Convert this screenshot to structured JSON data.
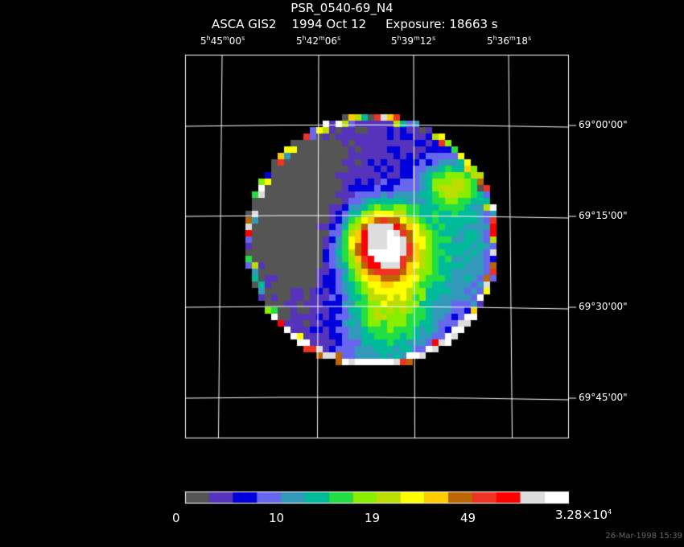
{
  "title": "PSR_0540-69_N4",
  "subtitle": {
    "instrument": "ASCA GIS2",
    "date": "1994 Oct 12",
    "exposure": "Exposure: 18663 s"
  },
  "ra_labels": [
    {
      "h": "5",
      "m": "45",
      "s": "00"
    },
    {
      "h": "5",
      "m": "42",
      "s": "06"
    },
    {
      "h": "5",
      "m": "39",
      "s": "12"
    },
    {
      "h": "5",
      "m": "36",
      "s": "18"
    }
  ],
  "dec_labels": [
    "69°00'00\"",
    "69°15'00\"",
    "69°30'00\"",
    "69°45'00\""
  ],
  "colorbar": {
    "colors": [
      "#555555",
      "#5533bb",
      "#0000dd",
      "#6666ee",
      "#3399bb",
      "#00bb99",
      "#22dd44",
      "#88ee00",
      "#bbdd00",
      "#ffff00",
      "#ffcc00",
      "#bb6600",
      "#ee3322",
      "#ff0000",
      "#dddddd",
      "#ffffff"
    ],
    "labels": [
      "0",
      "10",
      "19",
      "49"
    ],
    "max_label": {
      "mantissa": "3.28×10",
      "exponent": "4"
    }
  },
  "footer": "26-Mar-1998 15:39",
  "image": {
    "description": "ASCA GIS2 X-ray intensity map, circular field of view",
    "bright_source": "central red/white peak",
    "secondary_source": "yellow patch upper right"
  }
}
